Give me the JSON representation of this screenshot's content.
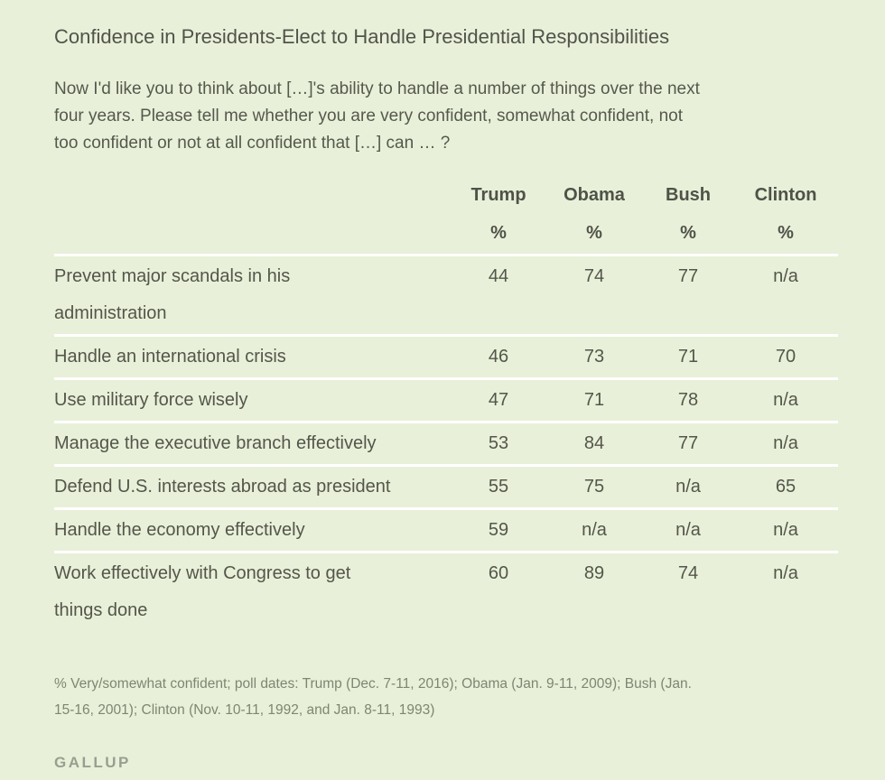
{
  "page": {
    "title": "Confidence in Presidents-Elect to Handle Presidential Responsibilities",
    "question": "Now I'd like you to think about […]'s ability to handle a number of things over the next\nfour years. Please tell me whether you are very confident, somewhat confident, not\ntoo confident or not at all confident that […] can … ?",
    "footnote": "% Very/somewhat confident; poll dates: Trump (Dec. 7-11, 2016); Obama (Jan. 9-11, 2009); Bush (Jan.\n15-16, 2001); Clinton (Nov. 10-11, 1992, and Jan. 8-11, 1993)",
    "brand": "GALLUP",
    "colors": {
      "background": "#e9f0d9",
      "text": "#53564a",
      "separator": "#ffffff",
      "footnote_text": "#7e8572",
      "brand_text": "#979f90"
    }
  },
  "chart_data": {
    "type": "table",
    "title": "Confidence in Presidents-Elect to Handle Presidential Responsibilities",
    "columns": [
      "Trump",
      "Obama",
      "Bush",
      "Clinton"
    ],
    "unit_row": [
      "%",
      "%",
      "%",
      "%"
    ],
    "rows": [
      {
        "label": "Prevent major scandals in his\nadministration",
        "values": [
          "44",
          "74",
          "77",
          "n/a"
        ]
      },
      {
        "label": "Handle an international crisis",
        "values": [
          "46",
          "73",
          "71",
          "70"
        ]
      },
      {
        "label": "Use military force wisely",
        "values": [
          "47",
          "71",
          "78",
          "n/a"
        ]
      },
      {
        "label": "Manage the executive branch effectively",
        "values": [
          "53",
          "84",
          "77",
          "n/a"
        ]
      },
      {
        "label": "Defend U.S. interests abroad as president",
        "values": [
          "55",
          "75",
          "n/a",
          "65"
        ]
      },
      {
        "label": "Handle the economy effectively",
        "values": [
          "59",
          "n/a",
          "n/a",
          "n/a"
        ]
      },
      {
        "label": "Work effectively with Congress to get\nthings done",
        "values": [
          "60",
          "89",
          "74",
          "n/a"
        ]
      }
    ]
  }
}
